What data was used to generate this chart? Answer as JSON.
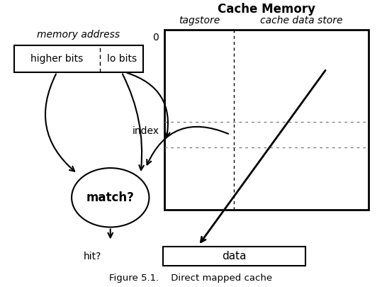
{
  "title": "Cache Memory",
  "caption": "Figure 5.1.    Direct mapped cache",
  "mem_addr_label": "memory address",
  "higher_bits_label": "higher bits",
  "lo_bits_label": "lo bits",
  "tagstore_label": "tagstore",
  "cache_data_store_label": "cache data store",
  "index_label": "index",
  "match_label": "match?",
  "hit_label": "hit?",
  "data_label": "data",
  "zero_label": "0",
  "bg_color": "#ffffff",
  "fig_w": 5.39,
  "fig_h": 4.05,
  "dpi": 100
}
